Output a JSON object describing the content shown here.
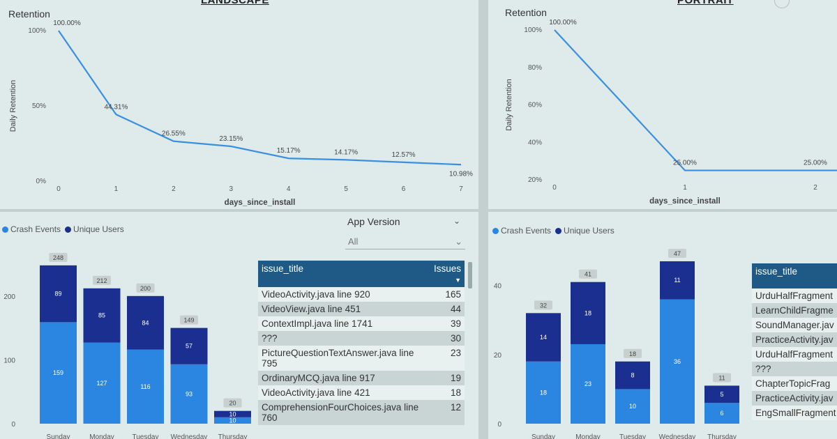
{
  "landscape": {
    "title": "LANDSCAPE",
    "retention": {
      "section_title": "Retention",
      "chart_data": {
        "type": "line",
        "title": "",
        "xlabel": "days_since_install",
        "ylabel": "Daily Retention",
        "x": [
          0,
          1,
          2,
          3,
          4,
          5,
          6,
          7
        ],
        "values": [
          100.0,
          44.31,
          26.55,
          23.15,
          15.17,
          14.17,
          12.57,
          10.98
        ],
        "data_labels": [
          "100.00%",
          "44.31%",
          "26.55%",
          "23.15%",
          "15.17%",
          "14.17%",
          "12.57%",
          "10.98%"
        ],
        "yticks": [
          "0%",
          "50%",
          "100%"
        ],
        "ylim": [
          0,
          100
        ],
        "color": "#3a8fe0"
      }
    },
    "crashes": {
      "legend": [
        {
          "name": "Crash Events",
          "color": "#2b86e2"
        },
        {
          "name": "Unique Users",
          "color": "#1a2f8f"
        }
      ],
      "chart_data": {
        "type": "bar",
        "stacked": true,
        "categories": [
          "Sunday",
          "Monday",
          "Tuesday",
          "Wednesday",
          "Thursday"
        ],
        "series": [
          {
            "name": "Crash Events",
            "values": [
              159,
              127,
              116,
              93,
              10
            ],
            "labels": [
              "159",
              "127",
              "116",
              "93",
              "10"
            ]
          },
          {
            "name": "Unique Users",
            "values": [
              89,
              85,
              84,
              57,
              10
            ],
            "labels": [
              "89",
              "85",
              "84",
              "57",
              "10"
            ]
          }
        ],
        "totals": [
          "248",
          "212",
          "200",
          "149",
          "20"
        ],
        "yticks": [
          "0",
          "100",
          "200"
        ],
        "ylim": [
          0,
          250
        ]
      }
    },
    "slicer": {
      "label": "App Version",
      "value": "All"
    },
    "issues_table": {
      "headers": [
        "issue_title",
        "Issues"
      ],
      "rows": [
        [
          "VideoActivity.java line 920",
          "165"
        ],
        [
          "VideoView.java line 451",
          "44"
        ],
        [
          "ContextImpl.java line 1741",
          "39"
        ],
        [
          "???",
          "30"
        ],
        [
          "PictureQuestionTextAnswer.java line 795",
          "23"
        ],
        [
          "OrdinaryMCQ.java line 917",
          "19"
        ],
        [
          "VideoActivity.java line 421",
          "18"
        ],
        [
          "ComprehensionFourChoices.java line 760",
          "12"
        ]
      ]
    }
  },
  "portrait": {
    "title": "PORTRAIT",
    "retention": {
      "section_title": "Retention",
      "chart_data": {
        "type": "line",
        "title": "",
        "xlabel": "days_since_install",
        "ylabel": "Daily Retention",
        "x": [
          0,
          1,
          2
        ],
        "values": [
          100.0,
          25.0,
          25.0
        ],
        "data_labels": [
          "100.00%",
          "25.00%",
          "25.00%"
        ],
        "yticks": [
          "20%",
          "40%",
          "60%",
          "80%",
          "100%"
        ],
        "ylim": [
          20,
          100
        ],
        "color": "#3a8fe0"
      }
    },
    "crashes": {
      "legend": [
        {
          "name": "Crash Events",
          "color": "#2b86e2"
        },
        {
          "name": "Unique Users",
          "color": "#1a2f8f"
        }
      ],
      "chart_data": {
        "type": "bar",
        "stacked": true,
        "categories": [
          "Sunday",
          "Monday",
          "Tuesday",
          "Wednesday",
          "Thursday"
        ],
        "series": [
          {
            "name": "Crash Events",
            "values": [
              18,
              23,
              10,
              36,
              6
            ],
            "labels": [
              "18",
              "23",
              "10",
              "36",
              "6"
            ]
          },
          {
            "name": "Unique Users",
            "values": [
              14,
              18,
              8,
              11,
              5
            ],
            "labels": [
              "14",
              "18",
              "8",
              "11",
              "5"
            ]
          }
        ],
        "totals": [
          "32",
          "41",
          "18",
          "47",
          "11"
        ],
        "yticks": [
          "0",
          "20",
          "40"
        ],
        "ylim": [
          0,
          48
        ]
      }
    },
    "issues_table": {
      "headers": [
        "issue_title"
      ],
      "rows": [
        [
          "UrduHalfFragment"
        ],
        [
          "LearnChildFragme"
        ],
        [
          "SoundManager.jav"
        ],
        [
          "PracticeActivity.jav"
        ],
        [
          "UrduHalfFragment"
        ],
        [
          "???"
        ],
        [
          "ChapterTopicFrag"
        ],
        [
          "PracticeActivity.jav"
        ],
        [
          "EngSmallFragment"
        ]
      ]
    }
  }
}
